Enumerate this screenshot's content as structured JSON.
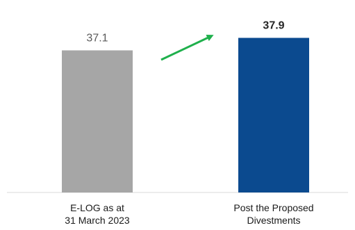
{
  "chart_data": {
    "type": "bar",
    "categories": [
      [
        "E-LOG as at",
        "31 March 2023"
      ],
      [
        "Post the Proposed",
        "Divestments"
      ]
    ],
    "values": [
      37.1,
      37.9
    ],
    "value_labels": [
      "37.1",
      "37.9"
    ],
    "value_label_bold": [
      false,
      true
    ],
    "ylim": [
      28,
      38.5
    ],
    "title": "",
    "xlabel": "",
    "ylabel": "",
    "grid": false,
    "legend": "none",
    "annotation": "upward arrow between bars",
    "colors": {
      "bars": [
        "#a6a6a6",
        "#0b4a8f"
      ],
      "value_labels": [
        "#595959",
        "#262626"
      ],
      "arrow": "#1fb04c",
      "baseline": "#d9d9d9"
    }
  }
}
